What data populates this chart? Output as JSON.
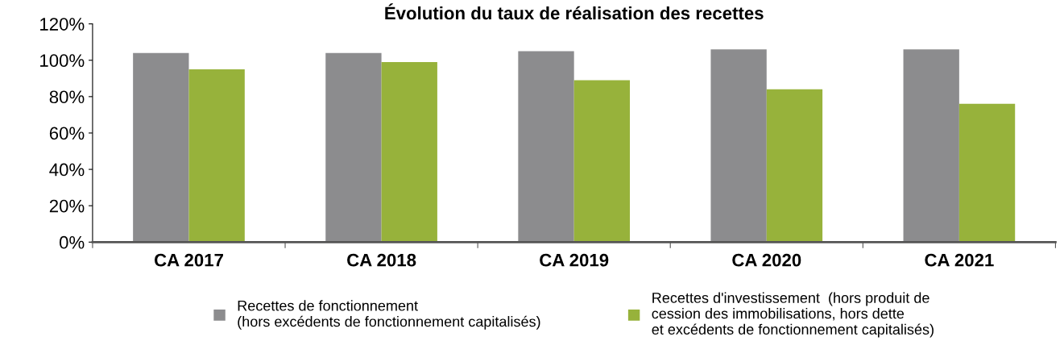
{
  "chart_data": {
    "type": "bar",
    "title": "Évolution du taux de réalisation des recettes",
    "categories": [
      "CA 2017",
      "CA 2018",
      "CA 2019",
      "CA 2020",
      "CA 2021"
    ],
    "series": [
      {
        "name": "Recettes de fonctionnement\n(hors excédents de fonctionnement capitalisés)",
        "color": "#8c8c8e",
        "values": [
          104,
          104,
          105,
          106,
          106
        ]
      },
      {
        "name": "Recettes d'investissement  (hors produit de\ncession des immobilisations, hors dette\net excédents de fonctionnement capitalisés)",
        "color": "#97b23b",
        "values": [
          95,
          99,
          89,
          84,
          76
        ]
      }
    ],
    "ylim": [
      0,
      120
    ],
    "yticks": [
      {
        "value": 0,
        "label": "0%"
      },
      {
        "value": 20,
        "label": "20%"
      },
      {
        "value": 40,
        "label": "40%"
      },
      {
        "value": 60,
        "label": "60%"
      },
      {
        "value": 80,
        "label": "80%"
      },
      {
        "value": 100,
        "label": "100%"
      },
      {
        "value": 120,
        "label": "120%"
      }
    ],
    "grid": false,
    "legend": "bottom"
  }
}
